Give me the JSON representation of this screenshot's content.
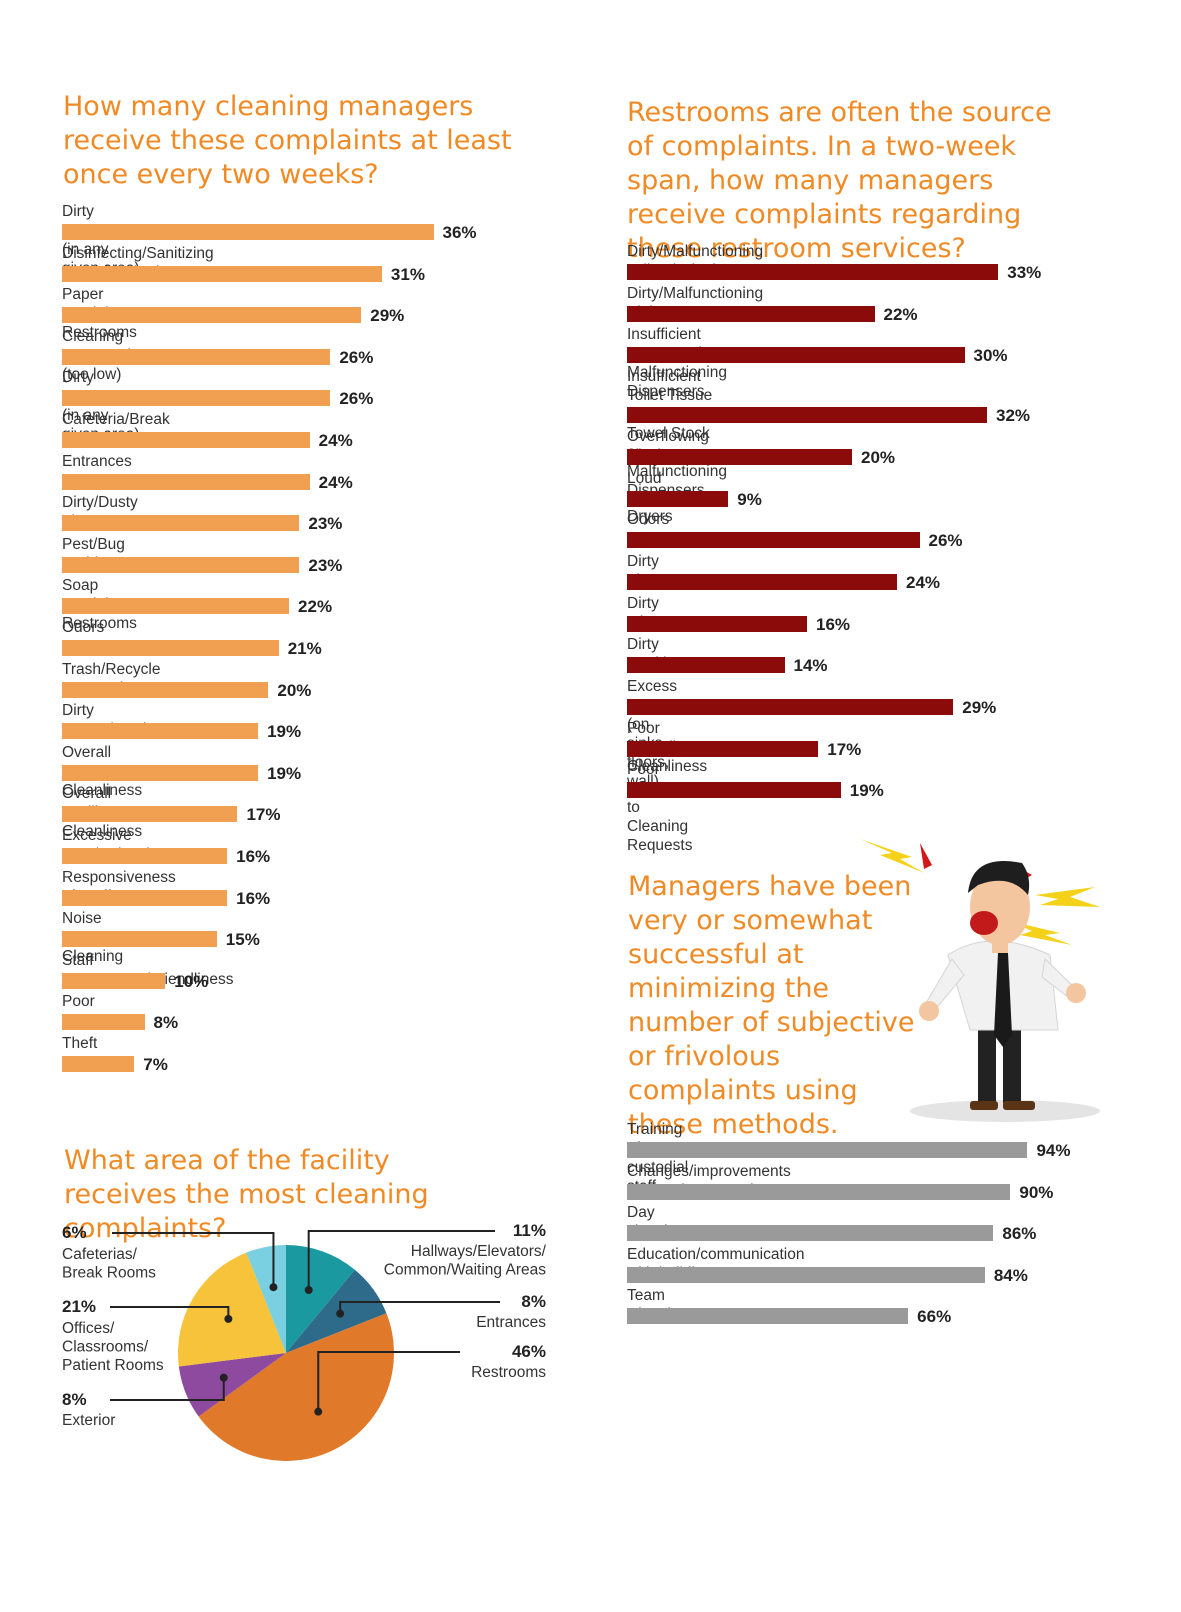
{
  "colors": {
    "heading": "#f08a24",
    "orange_bar": "#f0a050",
    "red_bar": "#8b0a0a",
    "gray_bar": "#9a9a9a"
  },
  "chart_data": [
    {
      "type": "bar",
      "orientation": "horizontal",
      "title": "How many cleaning managers receive these complaints at least once every two weeks?",
      "categories": [
        "Dirty Appearance (in any given area)",
        "Disinfecting/Sanitizing Freq. (too low)",
        "Paper Stock in Restrooms",
        "Cleaning Frequencies (too low)",
        "Dirty Appearance (in any given area)",
        "Cafeteria/Break Rooms",
        "Entrances",
        "Dirty/Dusty Floors",
        "Pest/Bug Problems",
        "Soap Stock in Restrooms",
        "Odors",
        "Trash/Recycle Removal",
        "Dirty Carpet/Matting",
        "Overall Restroom Cleanliness",
        "Overall Facility Cleanliness",
        "Excessive Dust/Cobwebs",
        "Responsiveness of Staff",
        "Noise From Cleaning",
        "Staff Appearance/Friendliness",
        "Poor IAQ",
        "Theft"
      ],
      "values": [
        36,
        31,
        29,
        26,
        26,
        24,
        24,
        23,
        23,
        22,
        21,
        20,
        19,
        19,
        17,
        16,
        16,
        15,
        10,
        8,
        7
      ],
      "labels": [
        "36%",
        "31%",
        "29%",
        "26%",
        "26%",
        "24%",
        "24%",
        "23%",
        "23%",
        "22%",
        "21%",
        "20%",
        "19%",
        "19%",
        "17%",
        "16%",
        "16%",
        "15%",
        "10%",
        "8%",
        "7%"
      ],
      "unit": "%"
    },
    {
      "type": "bar",
      "orientation": "horizontal",
      "title": "Restrooms are often the source of complaints. In a two-week span, how many managers receive complaints regarding these restroom services?",
      "categories": [
        "Dirty/Malfunctioning Toilets/Urinals",
        "Dirty/Malfunctioning Sinks",
        "Insufficient Soap Stock or Malfunctioning Dispensers",
        "Insufficient Toilet Tissue or Hand\nTowel Stock or Malfunctioning Dispensers",
        "Overflowing Trash Cans",
        "Loud Hand Dryers",
        "Odors",
        "Dirty Floors",
        "Dirty Mirrors",
        "Dirty Partitions",
        "Excess Water (on sinks, floors, wall)",
        "Poor Overall Cleanliness",
        "Poor Response to Cleaning Requests"
      ],
      "values": [
        33,
        22,
        30,
        32,
        20,
        9,
        26,
        24,
        16,
        14,
        29,
        17,
        19
      ],
      "labels": [
        "33%",
        "22%",
        "30%",
        "32%",
        "20%",
        "9%",
        "26%",
        "24%",
        "16%",
        "14%",
        "29%",
        "17%",
        "19%"
      ],
      "unit": "%"
    },
    {
      "type": "bar",
      "orientation": "horizontal",
      "title": "Managers have been very or somewhat successful at minimizing the number of subjective or frivolous complaints using these methods.",
      "categories": [
        "Training of custodial staff",
        "Changes/improvements to cleaning procedures",
        "Day cleaning",
        "Education/communication with building occupants",
        "Team Cleaning"
      ],
      "values": [
        94,
        90,
        86,
        84,
        66
      ],
      "labels": [
        "94%",
        "90%",
        "86%",
        "84%",
        "66%"
      ],
      "unit": "%"
    },
    {
      "type": "pie",
      "title": "What area of the facility receives the most cleaning complaints?",
      "slices": [
        {
          "label": "Hallways/Elevators/\nCommon/Waiting Areas",
          "value": 11,
          "value_label": "11%",
          "color": "#1a9aa0"
        },
        {
          "label": "Entrances",
          "value": 8,
          "value_label": "8%",
          "color": "#2e6b8a"
        },
        {
          "label": "Restrooms",
          "value": 46,
          "value_label": "46%",
          "color": "#e07a2a"
        },
        {
          "label": "Exterior",
          "value": 8,
          "value_label": "8%",
          "color": "#8e4a9e"
        },
        {
          "label": "Offices/\nClassrooms/\nPatient Rooms",
          "value": 21,
          "value_label": "21%",
          "color": "#f7c33a"
        },
        {
          "label": "Cafeterias/\nBreak Rooms",
          "value": 6,
          "value_label": "6%",
          "color": "#7ad0e0"
        }
      ]
    }
  ]
}
